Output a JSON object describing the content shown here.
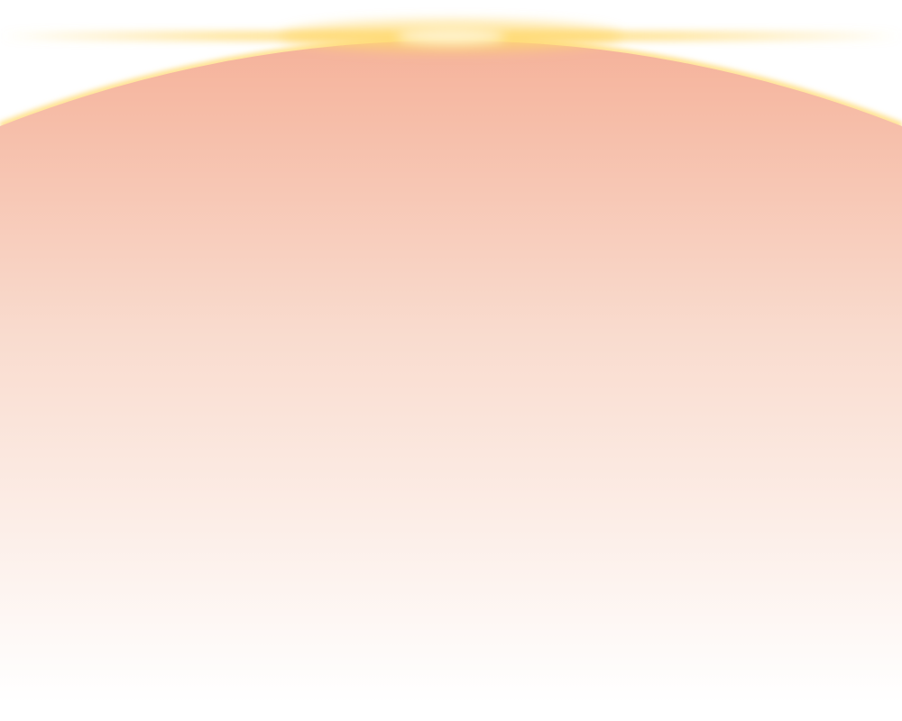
{
  "background": {
    "page_color": "#ffffff",
    "arc_top_color": "#f5b29a",
    "arc_mid_color": "#f9dccf",
    "arc_bottom_color": "#ffffff",
    "glow_color": "#ffd970"
  }
}
